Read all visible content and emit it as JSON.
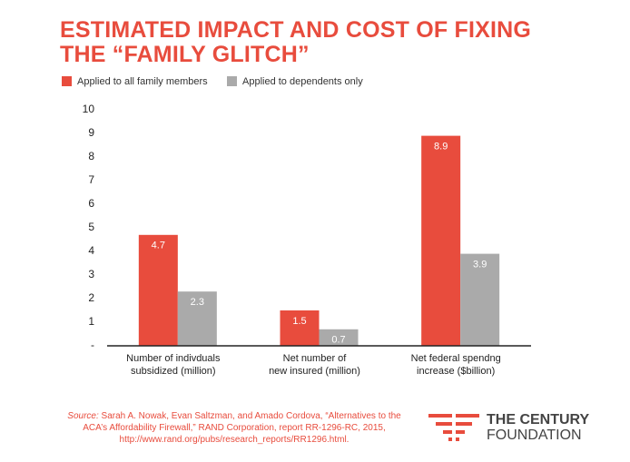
{
  "chart_data": {
    "type": "bar",
    "title": "ESTIMATED IMPACT AND COST OF FIXING THE “FAMILY GLITCH”",
    "categories": [
      [
        "Number of indivduals",
        "subsidized (million)"
      ],
      [
        "Net number of",
        "new insured (million)"
      ],
      [
        "Net federal spendng",
        "increase ($billion)"
      ]
    ],
    "series": [
      {
        "name": "Applied to all family members",
        "color": "#e84c3d",
        "values": [
          4.7,
          1.5,
          8.9
        ]
      },
      {
        "name": "Applied to dependents only",
        "color": "#aaaaaa",
        "values": [
          2.3,
          0.7,
          3.9
        ]
      }
    ],
    "ylim": [
      0,
      10
    ],
    "yticks": [
      {
        "value": 0,
        "label": "-"
      },
      1,
      2,
      3,
      4,
      5,
      6,
      7,
      8,
      9,
      10
    ],
    "legend": "top-left"
  },
  "source": {
    "label": "Source:",
    "lines": [
      "Sarah A. Nowak, Evan Saltzman, and Amado Cordova, “Alternatives to",
      "the ACA’s Affordability Firewall,” RAND Corporation, report RR-1296-RC, 2015,",
      "http://www.rand.org/pubs/research_reports/RR1296.html."
    ]
  },
  "logo": [
    "THE CENTURY",
    "FOUNDATION"
  ]
}
